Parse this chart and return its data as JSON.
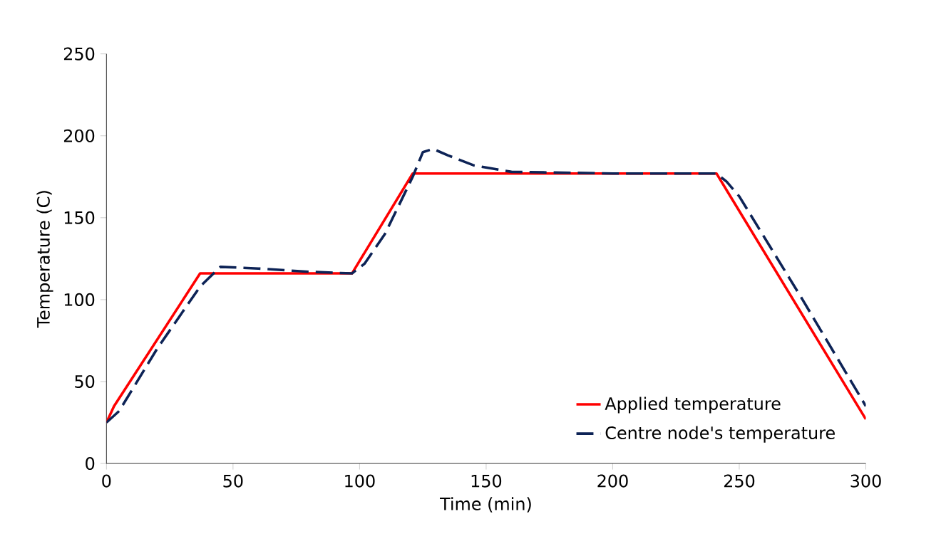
{
  "chart_data": {
    "type": "line",
    "xlabel": "Time (min)",
    "ylabel": "Temperature (C)",
    "xlim": [
      0,
      300
    ],
    "ylim": [
      0,
      250
    ],
    "xticks": [
      0,
      50,
      100,
      150,
      200,
      250,
      300
    ],
    "yticks": [
      0,
      50,
      100,
      150,
      200,
      250
    ],
    "legend": "bottom right",
    "grid": false,
    "marker": "none",
    "series": [
      {
        "name": "Applied temperature",
        "color": "#ff0000",
        "line_style": "solid",
        "x": [
          0,
          3,
          37,
          97,
          121,
          241,
          300
        ],
        "values": [
          25,
          35,
          116,
          116,
          177,
          177,
          27
        ]
      },
      {
        "name": "Centre node's temperature",
        "color": "#0d2356",
        "line_style": "dashed",
        "x": [
          0,
          5,
          20,
          37,
          45,
          60,
          80,
          97,
          102,
          110,
          121,
          125,
          129,
          135,
          145,
          160,
          200,
          241,
          245,
          250,
          275,
          300
        ],
        "values": [
          25,
          32,
          70,
          108,
          120,
          119,
          117,
          116,
          122,
          140,
          175,
          190,
          192,
          188,
          182,
          178,
          177,
          177,
          172,
          163,
          100,
          35
        ]
      }
    ]
  }
}
